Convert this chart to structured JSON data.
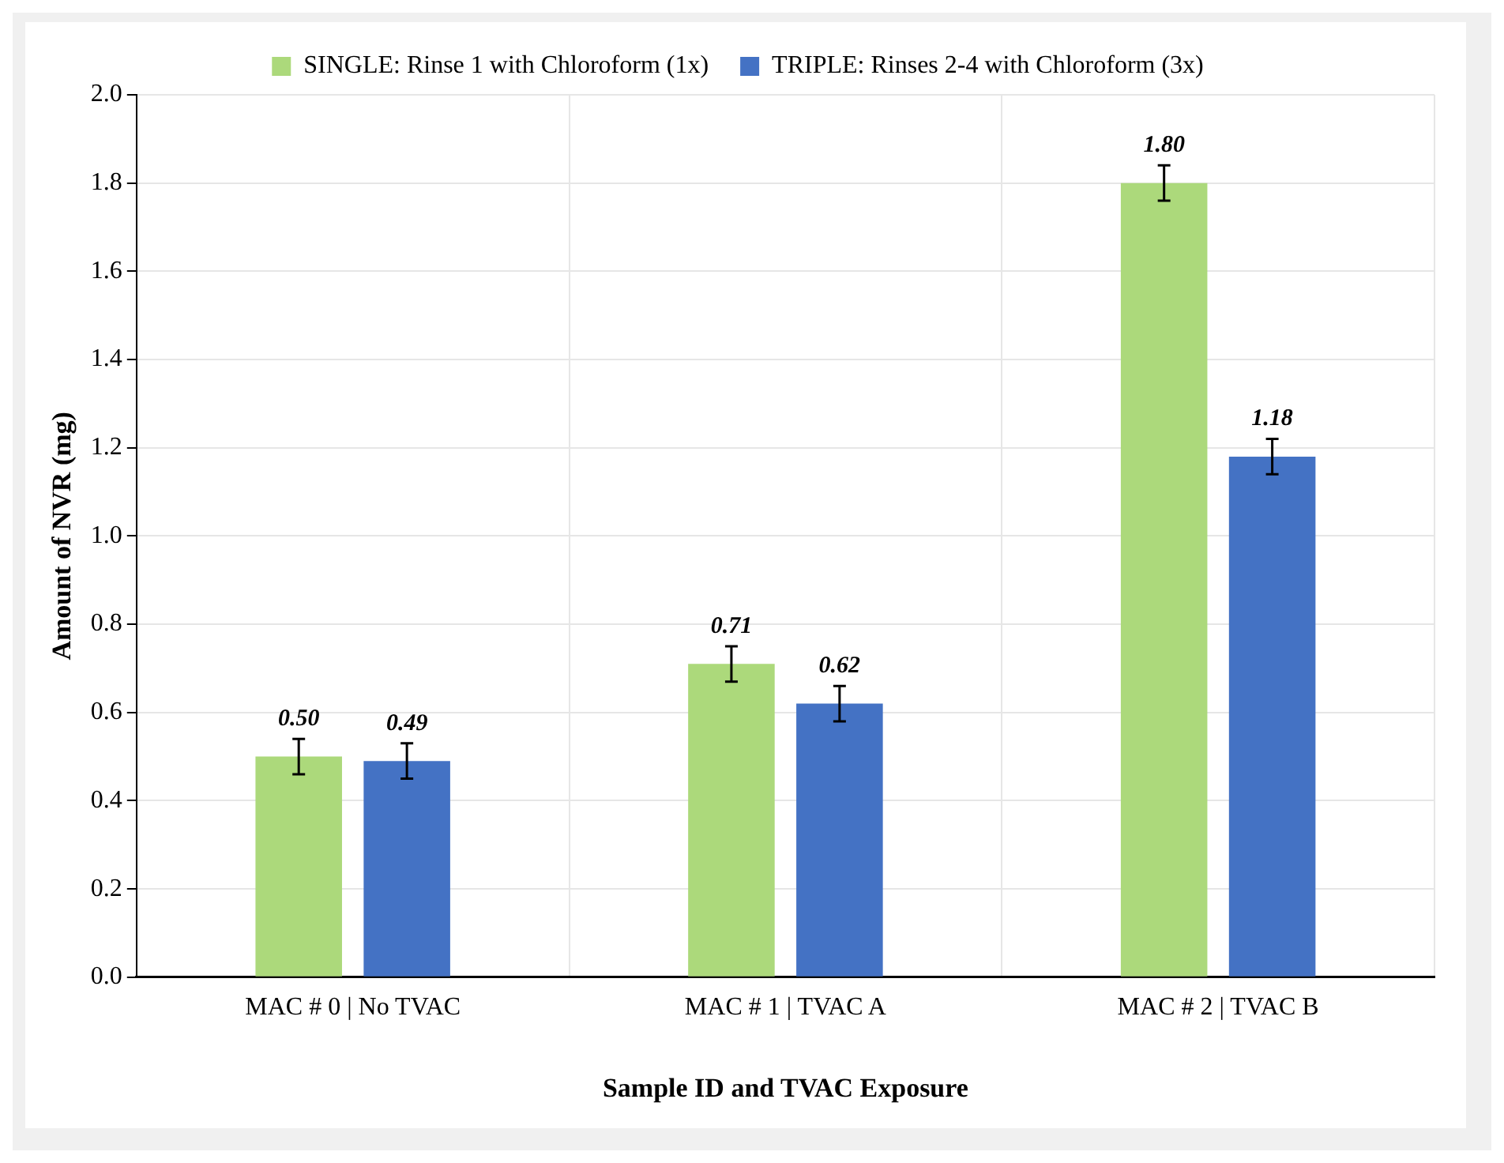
{
  "chart_data": {
    "type": "bar",
    "xlabel": "Sample ID and TVAC Exposure",
    "ylabel": "Amount of NVR (mg)",
    "categories": [
      "MAC # 0 | No TVAC",
      "MAC # 1 | TVAC A",
      "MAC # 2 | TVAC B"
    ],
    "series": [
      {
        "name": "SINGLE: Rinse 1 with Chloroform (1x)",
        "color": "#acd97b",
        "values": [
          0.5,
          0.71,
          1.8
        ],
        "value_labels": [
          "0.50",
          "0.71",
          "1.80"
        ],
        "errors": [
          0.04,
          0.04,
          0.04
        ]
      },
      {
        "name": "TRIPLE: Rinses 2-4 with Chloroform (3x)",
        "color": "#4472c4",
        "values": [
          0.49,
          0.62,
          1.18
        ],
        "value_labels": [
          "0.49",
          "0.62",
          "1.18"
        ],
        "errors": [
          0.04,
          0.04,
          0.04
        ]
      }
    ],
    "ylim": [
      0,
      2.0
    ],
    "yticks": [
      {
        "value": 0,
        "label": "0.0"
      },
      {
        "value": 0.2,
        "label": "0.2"
      },
      {
        "value": 0.4,
        "label": "0.4"
      },
      {
        "value": 0.6,
        "label": "0.6"
      },
      {
        "value": 0.8,
        "label": "0.8"
      },
      {
        "value": 1.0,
        "label": "1.0"
      },
      {
        "value": 1.2,
        "label": "1.2"
      },
      {
        "value": 1.4,
        "label": "1.4"
      },
      {
        "value": 1.6,
        "label": "1.6"
      },
      {
        "value": 1.8,
        "label": "1.8"
      },
      {
        "value": 2.0,
        "label": "2.0"
      }
    ],
    "grid": true,
    "legend": "top"
  }
}
